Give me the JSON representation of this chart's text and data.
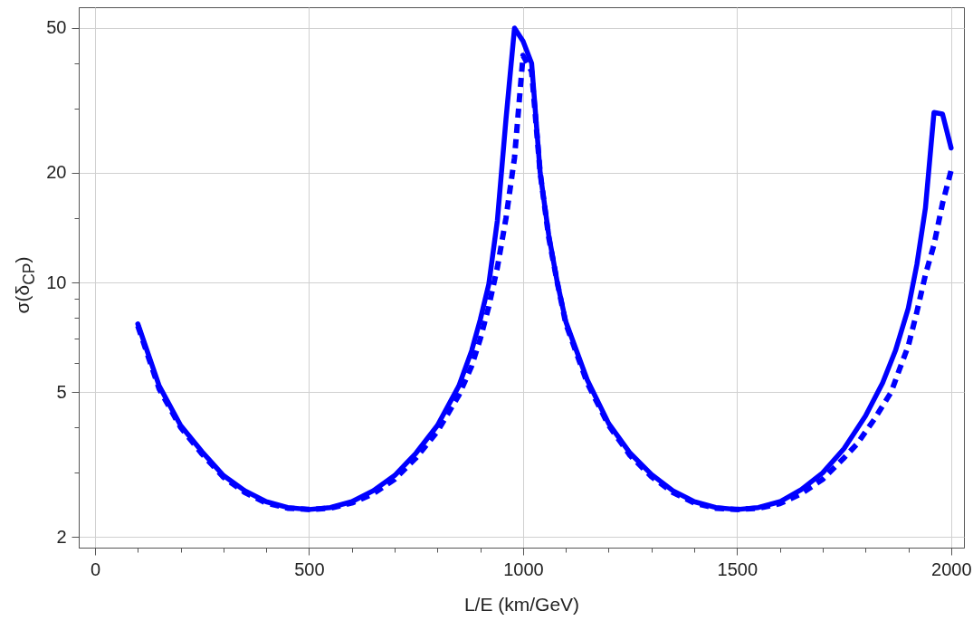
{
  "chart_data": {
    "type": "line",
    "xlabel": "L/E (km/GeV)",
    "ylabel": "σ(δ$_{CP}$)",
    "log": "y",
    "grid": true,
    "xlim": [
      -38,
      2030
    ],
    "ylim": [
      1.87,
      57
    ],
    "xticks": [
      0,
      {
        "value": 100,
        "label": null
      },
      {
        "value": 200,
        "label": null
      },
      {
        "value": 300,
        "label": null
      },
      {
        "value": 400,
        "label": null
      },
      500,
      {
        "value": 600,
        "label": null
      },
      {
        "value": 700,
        "label": null
      },
      {
        "value": 800,
        "label": null
      },
      {
        "value": 900,
        "label": null
      },
      1000,
      {
        "value": 1100,
        "label": null
      },
      {
        "value": 1200,
        "label": null
      },
      {
        "value": 1300,
        "label": null
      },
      {
        "value": 1400,
        "label": null
      },
      1500,
      {
        "value": 1600,
        "label": null
      },
      {
        "value": 1700,
        "label": null
      },
      {
        "value": 1800,
        "label": null
      },
      {
        "value": 1900,
        "label": null
      },
      2000
    ],
    "yticks": [
      2,
      {
        "value": 3,
        "label": null
      },
      {
        "value": 4,
        "label": null
      },
      5,
      {
        "value": 6,
        "label": null
      },
      {
        "value": 7,
        "label": null
      },
      {
        "value": 8,
        "label": null
      },
      {
        "value": 9,
        "label": null
      },
      10,
      {
        "value": 15,
        "label": null
      },
      20,
      {
        "value": 30,
        "label": null
      },
      {
        "value": 40,
        "label": null
      },
      50
    ],
    "series": [
      {
        "color": "#0000ff",
        "line_style": "solid",
        "x": [
          100,
          150,
          200,
          250,
          300,
          350,
          400,
          450,
          500,
          550,
          600,
          650,
          700,
          750,
          800,
          850,
          880,
          900,
          920,
          940,
          960,
          980,
          1000,
          1020,
          1040,
          1060,
          1080,
          1100,
          1150,
          1200,
          1250,
          1300,
          1350,
          1400,
          1450,
          1500,
          1550,
          1600,
          1650,
          1700,
          1750,
          1800,
          1840,
          1870,
          1900,
          1920,
          1940,
          1960,
          1980,
          2000
        ],
        "values": [
          7.7,
          5.2,
          4.05,
          3.43,
          2.95,
          2.68,
          2.5,
          2.41,
          2.38,
          2.41,
          2.5,
          2.68,
          2.95,
          3.4,
          4.05,
          5.2,
          6.5,
          7.9,
          9.9,
          14.8,
          28,
          50,
          46,
          40,
          20,
          13.5,
          10,
          7.8,
          5.4,
          4.1,
          3.4,
          2.97,
          2.68,
          2.5,
          2.41,
          2.38,
          2.41,
          2.5,
          2.7,
          3.0,
          3.5,
          4.3,
          5.3,
          6.5,
          8.5,
          11.2,
          16,
          29.3,
          29,
          23.4
        ]
      },
      {
        "color": "#0000ff",
        "line_style": "dashed",
        "x": [
          100,
          150,
          200,
          250,
          300,
          350,
          400,
          450,
          500,
          550,
          600,
          650,
          700,
          750,
          800,
          850,
          880,
          900,
          920,
          940,
          960,
          980,
          1000,
          1020,
          1040,
          1060,
          1080,
          1100,
          1150,
          1200,
          1250,
          1300,
          1350,
          1400,
          1450,
          1500,
          1550,
          1600,
          1650,
          1700,
          1750,
          1780,
          1820,
          1860,
          1880,
          1900,
          1920,
          1940,
          1960,
          1980,
          2000
        ],
        "values": [
          7.6,
          5.1,
          4.0,
          3.38,
          2.92,
          2.65,
          2.48,
          2.4,
          2.38,
          2.4,
          2.48,
          2.63,
          2.88,
          3.3,
          3.9,
          4.9,
          5.9,
          7.0,
          8.6,
          11,
          15,
          22,
          42,
          38,
          20,
          13.3,
          10,
          7.7,
          5.3,
          4.05,
          3.35,
          2.93,
          2.65,
          2.48,
          2.4,
          2.38,
          2.4,
          2.47,
          2.63,
          2.88,
          3.3,
          3.6,
          4.2,
          5.0,
          5.8,
          6.7,
          8.3,
          10.5,
          12.7,
          16.5,
          20.3
        ]
      }
    ]
  }
}
